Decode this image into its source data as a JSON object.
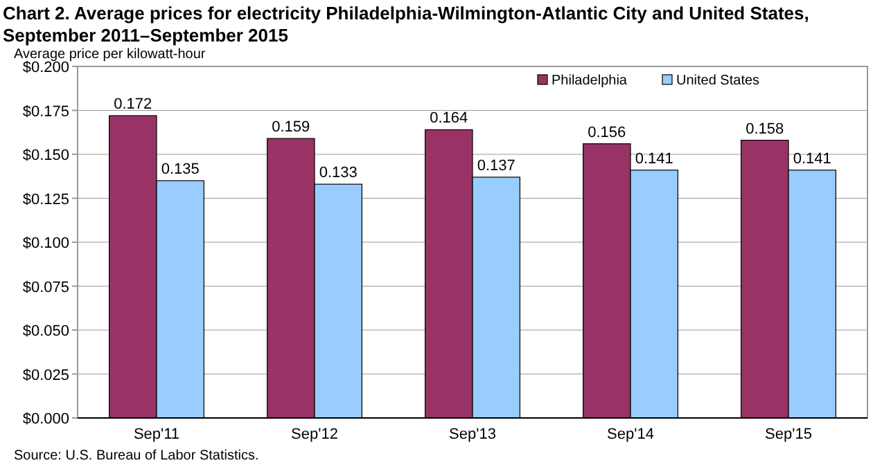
{
  "chart_data": {
    "type": "bar",
    "title": "Chart 2. Average prices for electricity Philadelphia-Wilmington-Atlantic  City and United States, September 2011–September 2015",
    "ylabel": "Average price per kilowatt-hour",
    "categories": [
      "Sep'11",
      "Sep'12",
      "Sep'13",
      "Sep'14",
      "Sep'15"
    ],
    "series": [
      {
        "name": "Philadelphia",
        "color": "#993366",
        "values": [
          0.172,
          0.159,
          0.164,
          0.156,
          0.158
        ]
      },
      {
        "name": "United States",
        "color": "#99ccff",
        "values": [
          0.135,
          0.133,
          0.137,
          0.141,
          0.141
        ]
      }
    ],
    "ylim": [
      0,
      0.2
    ],
    "yticks": [
      {
        "value": 0,
        "label": "$0.000"
      },
      {
        "value": 0.025,
        "label": "$0.025"
      },
      {
        "value": 0.05,
        "label": "$0.050"
      },
      {
        "value": 0.075,
        "label": "$0.075"
      },
      {
        "value": 0.1,
        "label": "$0.100"
      },
      {
        "value": 0.125,
        "label": "$0.125"
      },
      {
        "value": 0.15,
        "label": "$0.150"
      },
      {
        "value": 0.175,
        "label": "$0.175"
      },
      {
        "value": 0.2,
        "label": "$0.200"
      }
    ],
    "data_labels": true,
    "grid": "y",
    "legend": "top right",
    "annotations": [
      "Source: U.S. Bureau of Labor Statistics."
    ]
  }
}
